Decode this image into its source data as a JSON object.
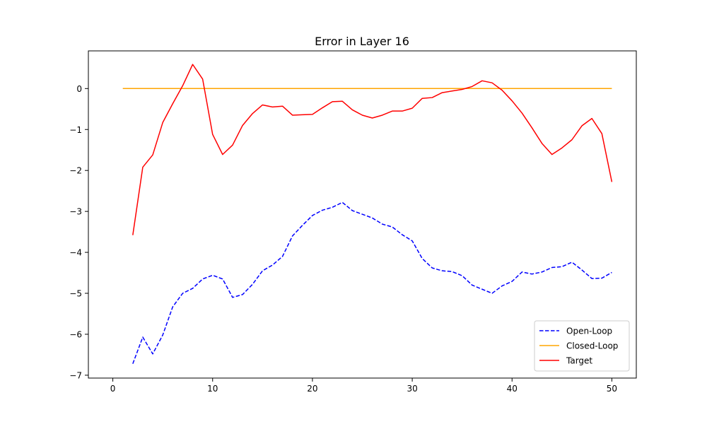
{
  "chart_data": {
    "type": "line",
    "title": "Error in Layer 16",
    "xlabel": "",
    "ylabel": "",
    "xlim": [
      -2.45,
      52.45
    ],
    "ylim": [
      -7.07,
      0.92
    ],
    "x_ticks": [
      0,
      10,
      20,
      30,
      40,
      50
    ],
    "y_ticks": [
      0,
      -1,
      -2,
      -3,
      -4,
      -5,
      -6,
      -7
    ],
    "y_tick_labels": [
      "0",
      "−1",
      "−2",
      "−3",
      "−4",
      "−5",
      "−6",
      "−7"
    ],
    "grid": false,
    "legend_position": "lower right",
    "series": [
      {
        "name": "Open-Loop",
        "color": "#0000ff",
        "style": "dashed",
        "x": [
          2,
          3,
          4,
          5,
          6,
          7,
          8,
          9,
          10,
          11,
          12,
          13,
          14,
          15,
          16,
          17,
          18,
          19,
          20,
          21,
          22,
          23,
          24,
          25,
          26,
          27,
          28,
          29,
          30,
          31,
          32,
          33,
          34,
          35,
          36,
          37,
          38,
          39,
          40,
          41,
          42,
          43,
          44,
          45,
          46,
          47,
          48,
          49,
          50
        ],
        "y": [
          -6.72,
          -6.07,
          -6.48,
          -6.02,
          -5.33,
          -5.0,
          -4.88,
          -4.65,
          -4.56,
          -4.65,
          -5.1,
          -5.03,
          -4.78,
          -4.45,
          -4.31,
          -4.1,
          -3.6,
          -3.34,
          -3.1,
          -2.97,
          -2.9,
          -2.78,
          -2.98,
          -3.07,
          -3.16,
          -3.31,
          -3.38,
          -3.57,
          -3.72,
          -4.15,
          -4.38,
          -4.45,
          -4.47,
          -4.57,
          -4.8,
          -4.9,
          -5.0,
          -4.82,
          -4.71,
          -4.48,
          -4.53,
          -4.48,
          -4.37,
          -4.35,
          -4.24,
          -4.43,
          -4.64,
          -4.63,
          -4.49
        ]
      },
      {
        "name": "Closed-Loop",
        "color": "#ffa500",
        "style": "solid",
        "x": [
          1,
          50
        ],
        "y": [
          0,
          0
        ]
      },
      {
        "name": "Target",
        "color": "#ff0000",
        "style": "solid",
        "x": [
          2,
          3,
          4,
          5,
          6,
          7,
          8,
          9,
          10,
          11,
          12,
          13,
          14,
          15,
          16,
          17,
          18,
          19,
          20,
          21,
          22,
          23,
          24,
          25,
          26,
          27,
          28,
          29,
          30,
          31,
          32,
          33,
          34,
          35,
          36,
          37,
          38,
          39,
          40,
          41,
          42,
          43,
          44,
          45,
          46,
          47,
          48,
          49,
          50
        ],
        "y": [
          -3.58,
          -1.92,
          -1.62,
          -0.83,
          -0.37,
          0.07,
          0.59,
          0.23,
          -1.12,
          -1.61,
          -1.38,
          -0.9,
          -0.61,
          -0.4,
          -0.45,
          -0.43,
          -0.65,
          -0.64,
          -0.63,
          -0.47,
          -0.32,
          -0.31,
          -0.52,
          -0.65,
          -0.72,
          -0.65,
          -0.55,
          -0.55,
          -0.48,
          -0.24,
          -0.22,
          -0.1,
          -0.06,
          -0.02,
          0.05,
          0.19,
          0.14,
          -0.04,
          -0.3,
          -0.6,
          -0.96,
          -1.34,
          -1.61,
          -1.45,
          -1.25,
          -0.91,
          -0.73,
          -1.1,
          -2.28
        ]
      }
    ]
  }
}
